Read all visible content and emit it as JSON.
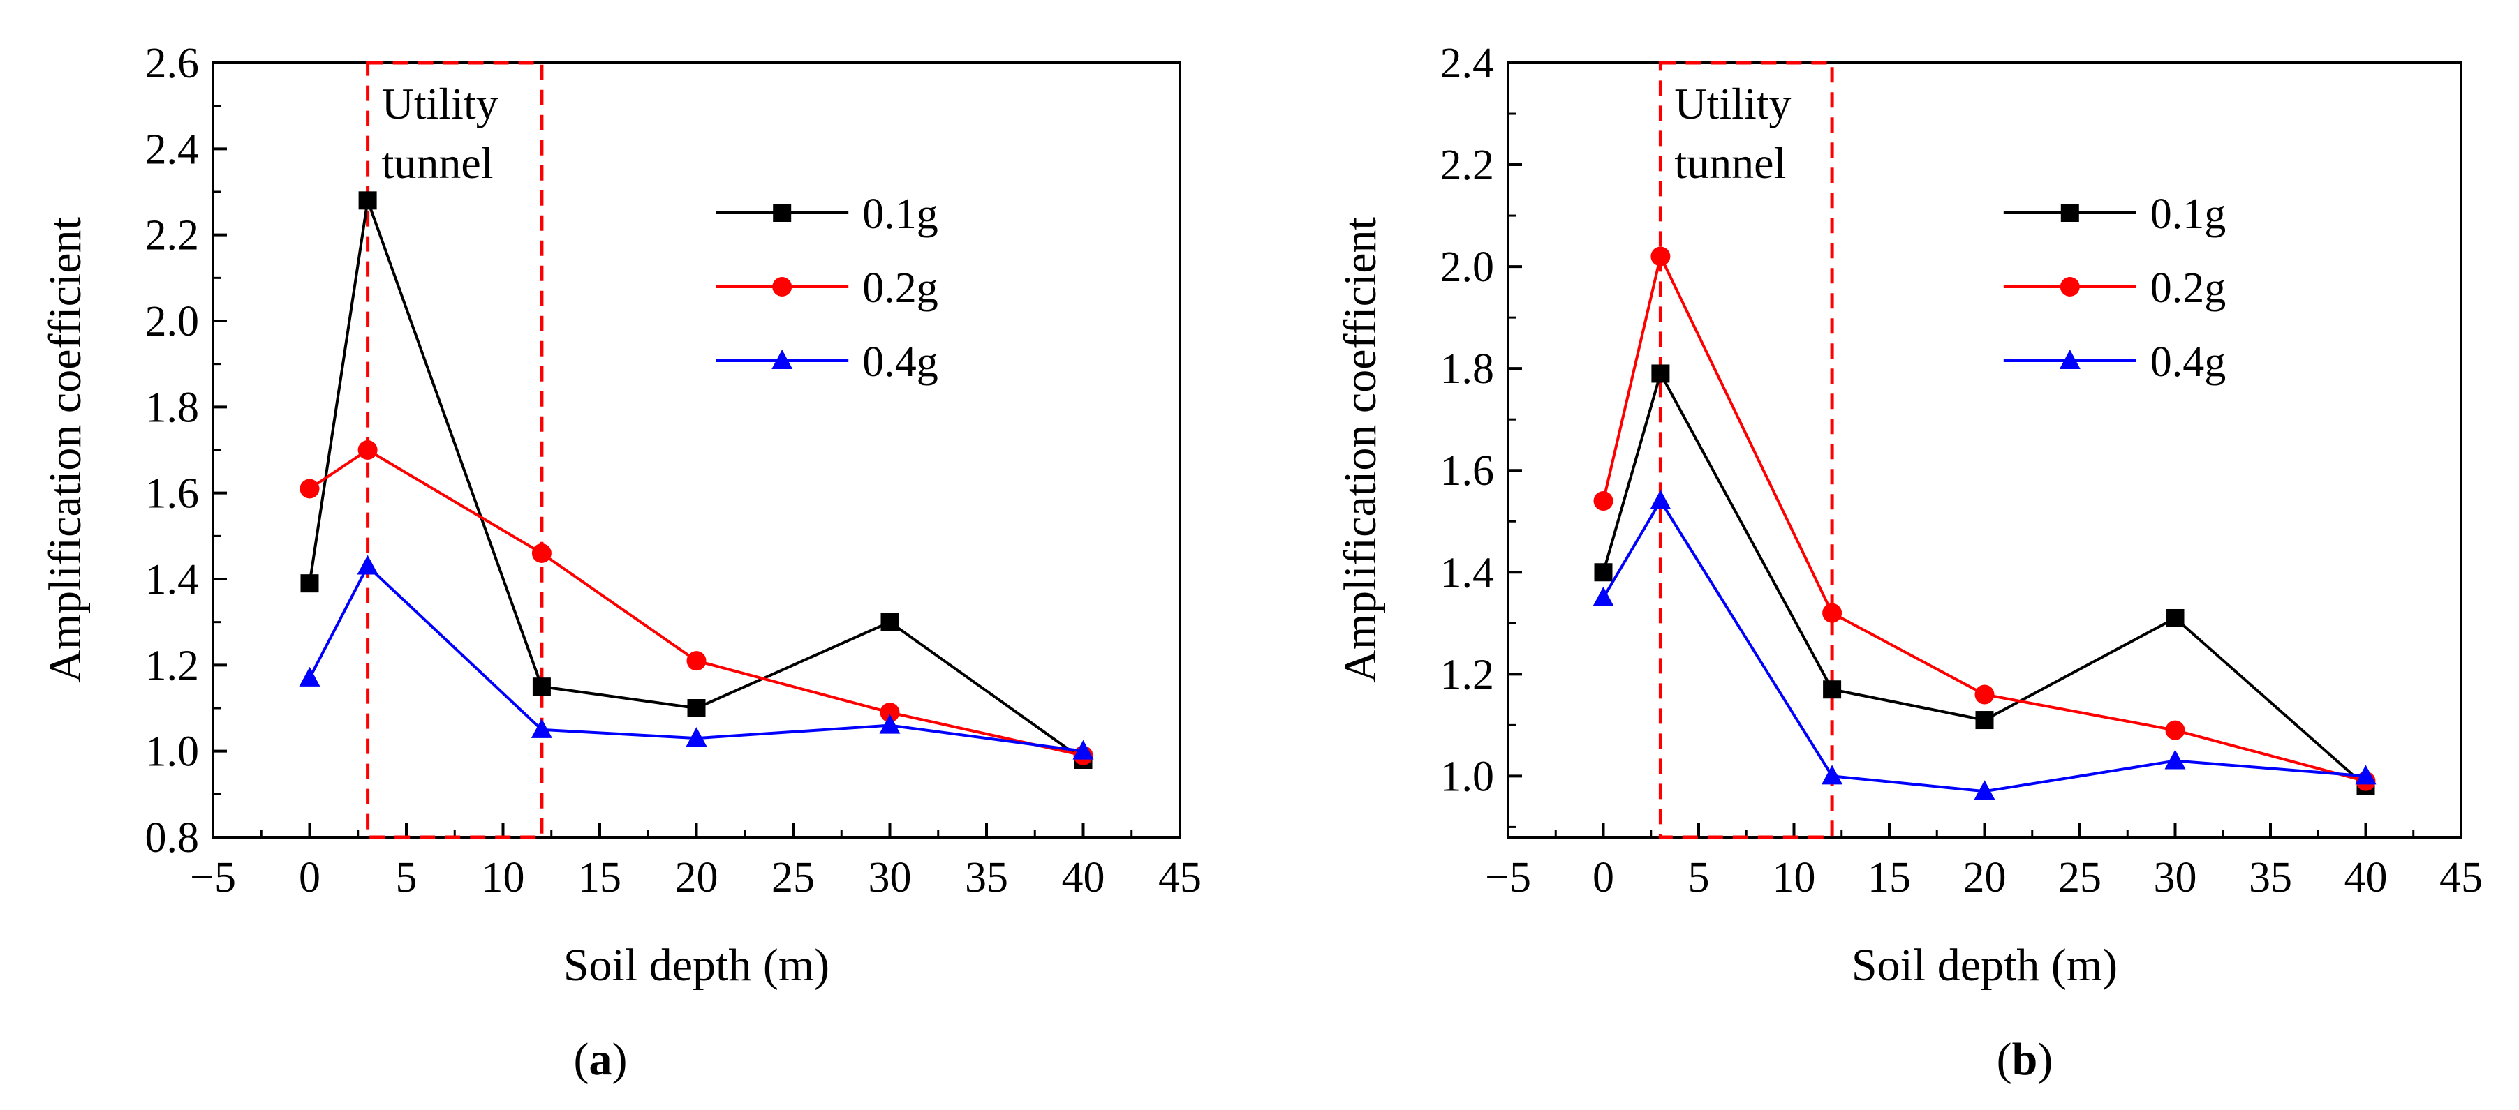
{
  "chart_data": [
    {
      "type": "line",
      "panel_label": "a",
      "xlabel": "Soil depth (m)",
      "ylabel": "Amplification coefficient",
      "xlim": [
        -5,
        45
      ],
      "ylim": [
        0.8,
        2.6
      ],
      "xticks": [
        -5,
        0,
        5,
        10,
        15,
        20,
        25,
        30,
        35,
        40,
        45
      ],
      "xtick_labels": [
        "−5",
        "0",
        "5",
        "10",
        "15",
        "20",
        "25",
        "30",
        "35",
        "40",
        "45"
      ],
      "yticks": [
        0.8,
        1.0,
        1.2,
        1.4,
        1.6,
        1.8,
        2.0,
        2.2,
        2.4,
        2.6
      ],
      "ytick_labels": [
        "0.8",
        "1.0",
        "1.2",
        "1.4",
        "1.6",
        "1.8",
        "2.0",
        "2.2",
        "2.4",
        "2.6"
      ],
      "legend_position": "upper-right",
      "grid": false,
      "x": [
        0,
        3,
        12,
        20,
        30,
        40
      ],
      "series": [
        {
          "name": "0.1g",
          "color": "#000000",
          "marker": "square",
          "values": [
            1.39,
            2.28,
            1.15,
            1.1,
            1.3,
            0.98
          ]
        },
        {
          "name": "0.2g",
          "color": "#ff0000",
          "marker": "circle",
          "values": [
            1.61,
            1.7,
            1.46,
            1.21,
            1.09,
            0.99
          ]
        },
        {
          "name": "0.4g",
          "color": "#0000ff",
          "marker": "triangle",
          "values": [
            1.17,
            1.43,
            1.05,
            1.03,
            1.06,
            1.0
          ]
        }
      ],
      "annotation": {
        "lines": [
          "Utility",
          "tunnel"
        ],
        "x_range": [
          3,
          12
        ],
        "color": "#ff0000",
        "style": "dashed"
      }
    },
    {
      "type": "line",
      "panel_label": "b",
      "xlabel": "Soil depth (m)",
      "ylabel": "Amplification coefficient",
      "xlim": [
        -5,
        45
      ],
      "ylim": [
        0.88,
        2.4
      ],
      "xticks": [
        -5,
        0,
        5,
        10,
        15,
        20,
        25,
        30,
        35,
        40,
        45
      ],
      "xtick_labels": [
        "−5",
        "0",
        "5",
        "10",
        "15",
        "20",
        "25",
        "30",
        "35",
        "40",
        "45"
      ],
      "yticks": [
        1.0,
        1.2,
        1.4,
        1.6,
        1.8,
        2.0,
        2.2,
        2.4
      ],
      "ytick_labels": [
        "1.0",
        "1.2",
        "1.4",
        "1.6",
        "1.8",
        "2.0",
        "2.2",
        "2.4"
      ],
      "legend_position": "upper-right",
      "grid": false,
      "x": [
        0,
        3,
        12,
        20,
        30,
        40
      ],
      "series": [
        {
          "name": "0.1g",
          "color": "#000000",
          "marker": "square",
          "values": [
            1.4,
            1.79,
            1.17,
            1.11,
            1.31,
            0.98
          ]
        },
        {
          "name": "0.2g",
          "color": "#ff0000",
          "marker": "circle",
          "values": [
            1.54,
            2.02,
            1.32,
            1.16,
            1.09,
            0.99
          ]
        },
        {
          "name": "0.4g",
          "color": "#0000ff",
          "marker": "triangle",
          "values": [
            1.35,
            1.54,
            1.0,
            0.97,
            1.03,
            1.0
          ]
        }
      ],
      "annotation": {
        "lines": [
          "Utility",
          "tunnel"
        ],
        "x_range": [
          3,
          12
        ],
        "color": "#ff0000",
        "style": "dashed"
      }
    }
  ]
}
